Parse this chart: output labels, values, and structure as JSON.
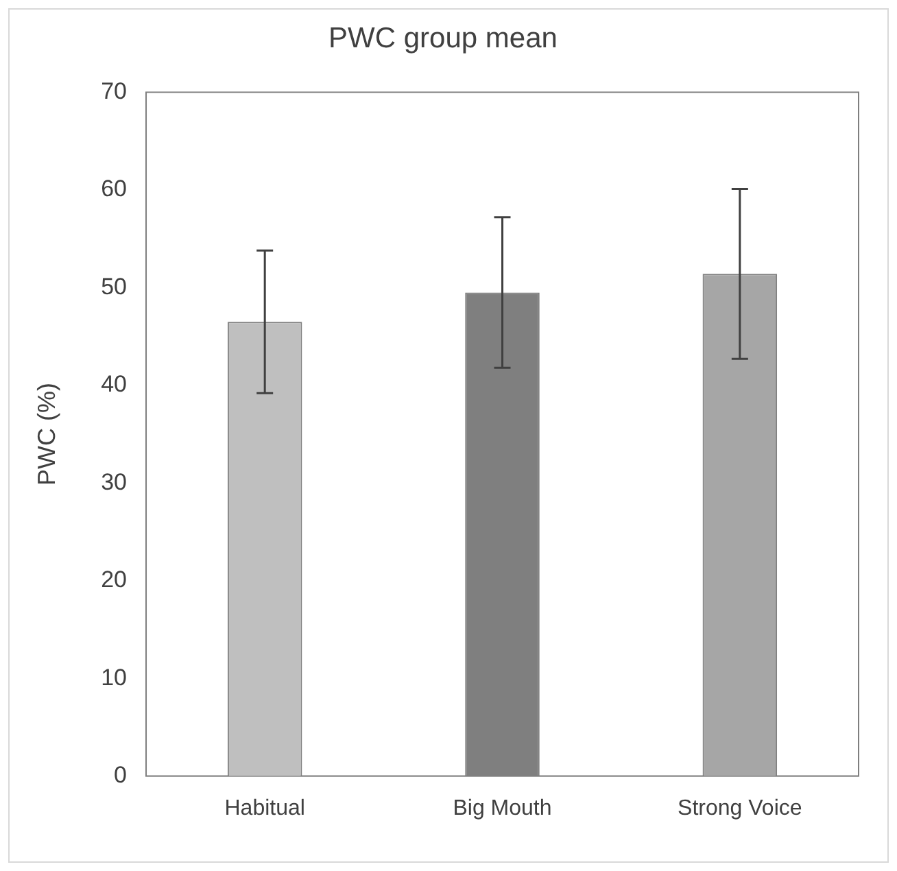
{
  "chart_data": {
    "type": "bar",
    "title": "PWC group mean",
    "ylabel": "PWC (%)",
    "categories": [
      "Habitual",
      "Big Mouth",
      "Strong Voice"
    ],
    "values": [
      46.5,
      49.5,
      51.4
    ],
    "errors": [
      7.3,
      7.7,
      8.7
    ],
    "colors": [
      "#bfbfbf",
      "#7f7f7f",
      "#a6a6a6"
    ],
    "ylim": [
      0,
      70
    ],
    "yticks": [
      0,
      10,
      20,
      30,
      40,
      50,
      60,
      70
    ],
    "grid": false,
    "legend": false
  }
}
